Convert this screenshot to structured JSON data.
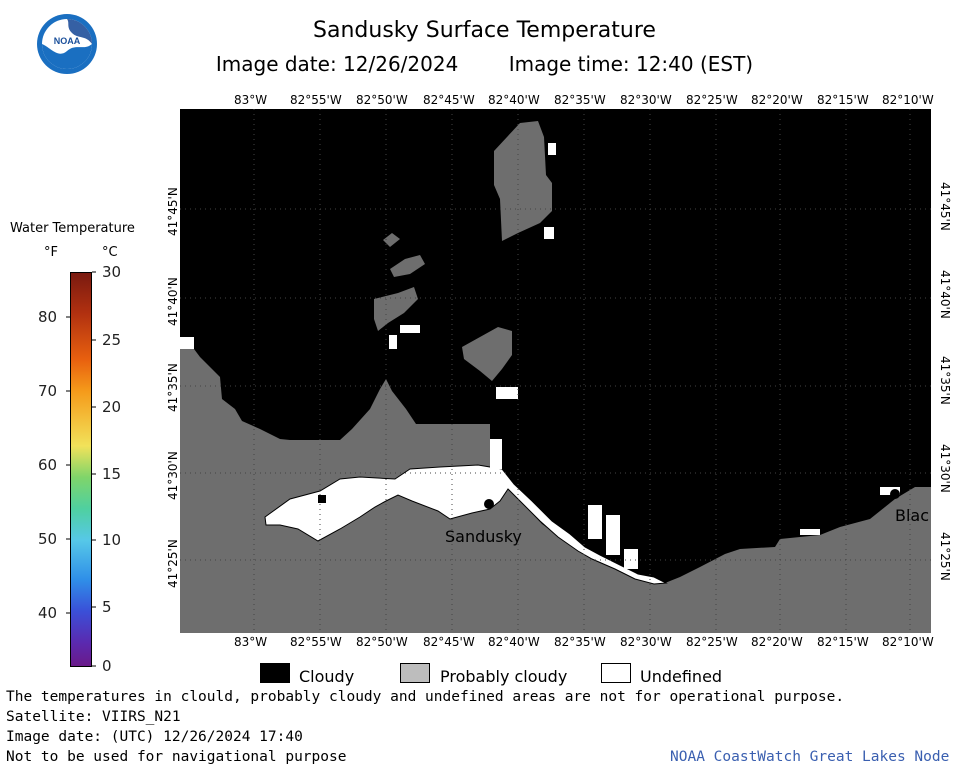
{
  "title": "Sandusky Surface Temperature",
  "image_date_label": "Image date: 12/26/2024",
  "image_time_label": "Image time: 12:40 (EST)",
  "logo_text": "NOAA",
  "top_lon_labels": [
    "83°W",
    "82°55'W",
    "82°50'W",
    "82°45'W",
    "82°40'W",
    "82°35'W",
    "82°30'W",
    "82°25'W",
    "82°20'W",
    "82°15'W",
    "82°10'W"
  ],
  "bottom_lon_labels": [
    "83°W",
    "82°55'W",
    "82°50'W",
    "82°45'W",
    "82°40'W",
    "82°35'W",
    "82°30'W",
    "82°25'W",
    "82°20'W",
    "82°15'W",
    "82°10'W"
  ],
  "lat_labels": [
    "41°45'N",
    "41°40'N",
    "41°35'N",
    "41°30'N",
    "41°25'N"
  ],
  "scale": {
    "title": "Water Temperature",
    "unit_f": "°F",
    "unit_c": "°C",
    "f_ticks": [
      "80",
      "70",
      "60",
      "50",
      "40"
    ],
    "c_ticks": [
      "30",
      "25",
      "20",
      "15",
      "10",
      "5",
      "0"
    ]
  },
  "places": {
    "sandusky": "Sandusky",
    "blac": "Blac"
  },
  "legend": {
    "cloudy": "Cloudy",
    "probably_cloudy": "Probably cloudy",
    "undefined": "Undefined"
  },
  "footer": {
    "disclaimer": "The temperatures in clould, probably cloudy and undefined areas are not for operational purpose.",
    "satellite": "Satellite: VIIRS_N21",
    "utc_date": "Image date: (UTC) 12/26/2024  17:40",
    "nav_warning": "Not to be used for navigational purpose",
    "credit": "NOAA CoastWatch Great Lakes Node"
  },
  "colors": {
    "cloudy": "#000000",
    "probably_cloudy": "#6e6e6e",
    "undefined": "#ffffff",
    "credit_link": "#3a5fb0"
  }
}
